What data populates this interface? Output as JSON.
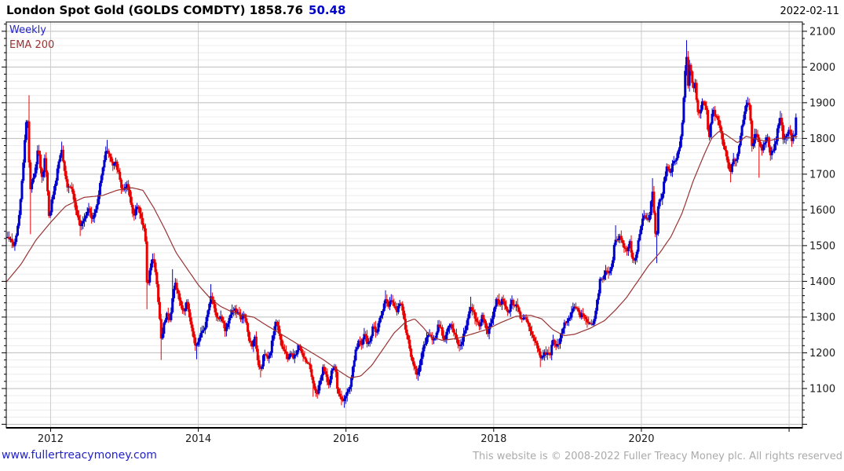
{
  "header": {
    "title": "London Spot Gold (GOLDS COMDTY) 1858.76",
    "change": "50.48",
    "date": "2022-02-11"
  },
  "legend": {
    "interval": "Weekly",
    "overlay": "EMA 200"
  },
  "footer": {
    "link": "www.fullertreacymoney.com",
    "copyright": "This website is © 2008-2022 Fuller Treacy Money plc. All rights reserved"
  },
  "chart_data": {
    "type": "candlestick",
    "title": "London Spot Gold (GOLDS COMDTY)",
    "interval": "weekly",
    "overlay": "EMA 200",
    "last_price": 1858.76,
    "change": 50.48,
    "as_of": "2022-02-11",
    "x_range": [
      2011.4,
      2022.18
    ],
    "y_range": [
      990,
      2126
    ],
    "y_ticks": [
      2100,
      2000,
      1900,
      1800,
      1700,
      1600,
      1500,
      1400,
      1300,
      1200,
      1100
    ],
    "y_minor_step": 20,
    "x_ticks": [
      2012,
      2014,
      2016,
      2018,
      2020,
      2022
    ],
    "x_tick_labels": [
      "2012",
      "2014",
      "2016",
      "2018",
      "2020",
      ""
    ],
    "grid": true,
    "legend_position": "top-left",
    "colors": {
      "up": "#0000cc",
      "down": "#e90000",
      "ema": "#993333",
      "grid_major": "#bdbdbd",
      "grid_minor": "#ececec",
      "grid_vertical": "#cccccc",
      "axis": "#000000",
      "label": "#1a1a1a"
    },
    "price_anchors": [
      [
        2011.42,
        1528
      ],
      [
        2011.46,
        1515
      ],
      [
        2011.5,
        1498
      ],
      [
        2011.54,
        1532
      ],
      [
        2011.58,
        1595
      ],
      [
        2011.62,
        1700
      ],
      [
        2011.66,
        1825
      ],
      [
        2011.685,
        1880
      ],
      [
        2011.705,
        1745
      ],
      [
        2011.725,
        1655
      ],
      [
        2011.76,
        1682
      ],
      [
        2011.8,
        1722
      ],
      [
        2011.83,
        1782
      ],
      [
        2011.86,
        1722
      ],
      [
        2011.89,
        1682
      ],
      [
        2011.92,
        1742
      ],
      [
        2011.95,
        1690
      ],
      [
        2011.98,
        1572
      ],
      [
        2012.02,
        1632
      ],
      [
        2012.06,
        1668
      ],
      [
        2012.1,
        1725
      ],
      [
        2012.15,
        1772
      ],
      [
        2012.19,
        1712
      ],
      [
        2012.23,
        1662
      ],
      [
        2012.27,
        1668
      ],
      [
        2012.31,
        1642
      ],
      [
        2012.35,
        1585
      ],
      [
        2012.4,
        1560
      ],
      [
        2012.44,
        1572
      ],
      [
        2012.48,
        1590
      ],
      [
        2012.52,
        1608
      ],
      [
        2012.56,
        1576
      ],
      [
        2012.6,
        1592
      ],
      [
        2012.64,
        1622
      ],
      [
        2012.68,
        1692
      ],
      [
        2012.72,
        1735
      ],
      [
        2012.76,
        1772
      ],
      [
        2012.8,
        1752
      ],
      [
        2012.84,
        1722
      ],
      [
        2012.88,
        1732
      ],
      [
        2012.92,
        1702
      ],
      [
        2012.96,
        1662
      ],
      [
        2013.0,
        1655
      ],
      [
        2013.04,
        1668
      ],
      [
        2013.08,
        1630
      ],
      [
        2013.12,
        1582
      ],
      [
        2013.16,
        1610
      ],
      [
        2013.2,
        1600
      ],
      [
        2013.24,
        1565
      ],
      [
        2013.28,
        1545
      ],
      [
        2013.31,
        1360
      ],
      [
        2013.35,
        1452
      ],
      [
        2013.39,
        1465
      ],
      [
        2013.43,
        1412
      ],
      [
        2013.46,
        1340
      ],
      [
        2013.5,
        1232
      ],
      [
        2013.54,
        1288
      ],
      [
        2013.58,
        1312
      ],
      [
        2013.62,
        1292
      ],
      [
        2013.66,
        1368
      ],
      [
        2013.69,
        1396
      ],
      [
        2013.73,
        1362
      ],
      [
        2013.77,
        1326
      ],
      [
        2013.81,
        1316
      ],
      [
        2013.85,
        1342
      ],
      [
        2013.89,
        1292
      ],
      [
        2013.93,
        1246
      ],
      [
        2013.97,
        1212
      ],
      [
        2014.01,
        1242
      ],
      [
        2014.05,
        1256
      ],
      [
        2014.09,
        1272
      ],
      [
        2014.13,
        1322
      ],
      [
        2014.17,
        1356
      ],
      [
        2014.21,
        1336
      ],
      [
        2014.25,
        1296
      ],
      [
        2014.29,
        1302
      ],
      [
        2014.33,
        1292
      ],
      [
        2014.37,
        1256
      ],
      [
        2014.41,
        1296
      ],
      [
        2014.45,
        1316
      ],
      [
        2014.49,
        1322
      ],
      [
        2014.53,
        1312
      ],
      [
        2014.57,
        1296
      ],
      [
        2014.61,
        1306
      ],
      [
        2014.65,
        1282
      ],
      [
        2014.69,
        1232
      ],
      [
        2014.73,
        1222
      ],
      [
        2014.77,
        1242
      ],
      [
        2014.81,
        1172
      ],
      [
        2014.85,
        1152
      ],
      [
        2014.89,
        1202
      ],
      [
        2014.93,
        1182
      ],
      [
        2014.97,
        1196
      ],
      [
        2015.01,
        1246
      ],
      [
        2015.05,
        1292
      ],
      [
        2015.09,
        1262
      ],
      [
        2015.13,
        1222
      ],
      [
        2015.17,
        1202
      ],
      [
        2015.21,
        1182
      ],
      [
        2015.25,
        1202
      ],
      [
        2015.29,
        1182
      ],
      [
        2015.33,
        1202
      ],
      [
        2015.37,
        1222
      ],
      [
        2015.41,
        1192
      ],
      [
        2015.45,
        1176
      ],
      [
        2015.49,
        1172
      ],
      [
        2015.53,
        1136
      ],
      [
        2015.57,
        1096
      ],
      [
        2015.61,
        1086
      ],
      [
        2015.65,
        1122
      ],
      [
        2015.69,
        1156
      ],
      [
        2015.73,
        1136
      ],
      [
        2015.77,
        1106
      ],
      [
        2015.81,
        1152
      ],
      [
        2015.85,
        1166
      ],
      [
        2015.89,
        1086
      ],
      [
        2015.93,
        1072
      ],
      [
        2015.97,
        1062
      ],
      [
        2016.01,
        1096
      ],
      [
        2016.05,
        1092
      ],
      [
        2016.09,
        1152
      ],
      [
        2016.13,
        1202
      ],
      [
        2016.17,
        1236
      ],
      [
        2016.21,
        1222
      ],
      [
        2016.25,
        1256
      ],
      [
        2016.29,
        1222
      ],
      [
        2016.33,
        1232
      ],
      [
        2016.37,
        1286
      ],
      [
        2016.41,
        1256
      ],
      [
        2016.45,
        1292
      ],
      [
        2016.49,
        1312
      ],
      [
        2016.53,
        1356
      ],
      [
        2016.57,
        1332
      ],
      [
        2016.61,
        1346
      ],
      [
        2016.65,
        1336
      ],
      [
        2016.69,
        1312
      ],
      [
        2016.73,
        1342
      ],
      [
        2016.77,
        1316
      ],
      [
        2016.81,
        1262
      ],
      [
        2016.85,
        1226
      ],
      [
        2016.89,
        1182
      ],
      [
        2016.93,
        1156
      ],
      [
        2016.97,
        1136
      ],
      [
        2017.01,
        1182
      ],
      [
        2017.05,
        1216
      ],
      [
        2017.09,
        1236
      ],
      [
        2017.13,
        1256
      ],
      [
        2017.17,
        1232
      ],
      [
        2017.21,
        1246
      ],
      [
        2017.25,
        1282
      ],
      [
        2017.29,
        1266
      ],
      [
        2017.33,
        1232
      ],
      [
        2017.37,
        1266
      ],
      [
        2017.41,
        1282
      ],
      [
        2017.45,
        1256
      ],
      [
        2017.49,
        1242
      ],
      [
        2017.53,
        1216
      ],
      [
        2017.57,
        1232
      ],
      [
        2017.61,
        1262
      ],
      [
        2017.65,
        1292
      ],
      [
        2017.68,
        1332
      ],
      [
        2017.72,
        1322
      ],
      [
        2017.76,
        1292
      ],
      [
        2017.8,
        1272
      ],
      [
        2017.84,
        1302
      ],
      [
        2017.88,
        1282
      ],
      [
        2017.92,
        1256
      ],
      [
        2017.96,
        1282
      ],
      [
        2018.0,
        1322
      ],
      [
        2018.04,
        1352
      ],
      [
        2018.08,
        1332
      ],
      [
        2018.12,
        1352
      ],
      [
        2018.16,
        1326
      ],
      [
        2018.2,
        1312
      ],
      [
        2018.24,
        1346
      ],
      [
        2018.28,
        1332
      ],
      [
        2018.32,
        1336
      ],
      [
        2018.36,
        1302
      ],
      [
        2018.4,
        1292
      ],
      [
        2018.44,
        1296
      ],
      [
        2018.48,
        1272
      ],
      [
        2018.52,
        1252
      ],
      [
        2018.56,
        1232
      ],
      [
        2018.6,
        1212
      ],
      [
        2018.64,
        1182
      ],
      [
        2018.68,
        1196
      ],
      [
        2018.72,
        1202
      ],
      [
        2018.76,
        1192
      ],
      [
        2018.8,
        1232
      ],
      [
        2018.84,
        1222
      ],
      [
        2018.88,
        1226
      ],
      [
        2018.92,
        1252
      ],
      [
        2018.96,
        1282
      ],
      [
        2019.0,
        1292
      ],
      [
        2019.04,
        1306
      ],
      [
        2019.08,
        1322
      ],
      [
        2019.12,
        1332
      ],
      [
        2019.16,
        1302
      ],
      [
        2019.2,
        1312
      ],
      [
        2019.24,
        1292
      ],
      [
        2019.28,
        1286
      ],
      [
        2019.32,
        1276
      ],
      [
        2019.36,
        1286
      ],
      [
        2019.4,
        1342
      ],
      [
        2019.44,
        1402
      ],
      [
        2019.48,
        1412
      ],
      [
        2019.52,
        1426
      ],
      [
        2019.56,
        1416
      ],
      [
        2019.6,
        1442
      ],
      [
        2019.64,
        1512
      ],
      [
        2019.68,
        1522
      ],
      [
        2019.72,
        1526
      ],
      [
        2019.76,
        1502
      ],
      [
        2019.8,
        1482
      ],
      [
        2019.84,
        1512
      ],
      [
        2019.88,
        1466
      ],
      [
        2019.92,
        1462
      ],
      [
        2019.96,
        1516
      ],
      [
        2020.0,
        1562
      ],
      [
        2020.04,
        1586
      ],
      [
        2020.08,
        1572
      ],
      [
        2020.12,
        1586
      ],
      [
        2020.145,
        1672
      ],
      [
        2020.17,
        1586
      ],
      [
        2020.2,
        1496
      ],
      [
        2020.23,
        1622
      ],
      [
        2020.27,
        1626
      ],
      [
        2020.31,
        1686
      ],
      [
        2020.35,
        1722
      ],
      [
        2020.39,
        1702
      ],
      [
        2020.43,
        1736
      ],
      [
        2020.47,
        1746
      ],
      [
        2020.51,
        1772
      ],
      [
        2020.545,
        1812
      ],
      [
        2020.57,
        1902
      ],
      [
        2020.59,
        1976
      ],
      [
        2020.61,
        2036
      ],
      [
        2020.63,
        1942
      ],
      [
        2020.655,
        2012
      ],
      [
        2020.68,
        1966
      ],
      [
        2020.7,
        1942
      ],
      [
        2020.73,
        1952
      ],
      [
        2020.76,
        1882
      ],
      [
        2020.79,
        1866
      ],
      [
        2020.82,
        1902
      ],
      [
        2020.85,
        1906
      ],
      [
        2020.88,
        1882
      ],
      [
        2020.91,
        1792
      ],
      [
        2020.94,
        1842
      ],
      [
        2020.97,
        1882
      ],
      [
        2021.0,
        1866
      ],
      [
        2021.04,
        1852
      ],
      [
        2021.08,
        1812
      ],
      [
        2021.12,
        1776
      ],
      [
        2021.16,
        1736
      ],
      [
        2021.2,
        1702
      ],
      [
        2021.24,
        1746
      ],
      [
        2021.28,
        1732
      ],
      [
        2021.32,
        1776
      ],
      [
        2021.36,
        1832
      ],
      [
        2021.4,
        1872
      ],
      [
        2021.44,
        1906
      ],
      [
        2021.47,
        1882
      ],
      [
        2021.5,
        1766
      ],
      [
        2021.54,
        1812
      ],
      [
        2021.58,
        1802
      ],
      [
        2021.62,
        1766
      ],
      [
        2021.66,
        1782
      ],
      [
        2021.7,
        1816
      ],
      [
        2021.74,
        1756
      ],
      [
        2021.78,
        1762
      ],
      [
        2021.82,
        1792
      ],
      [
        2021.86,
        1846
      ],
      [
        2021.89,
        1862
      ],
      [
        2021.92,
        1792
      ],
      [
        2021.96,
        1802
      ],
      [
        2022.0,
        1832
      ],
      [
        2022.03,
        1792
      ],
      [
        2022.06,
        1808
      ],
      [
        2022.09,
        1822
      ],
      [
        2022.11,
        1858.76
      ]
    ],
    "high_spikes": [
      [
        2011.705,
        1921
      ],
      [
        2012.15,
        1791
      ],
      [
        2012.76,
        1796
      ],
      [
        2013.66,
        1434
      ],
      [
        2014.17,
        1392
      ],
      [
        2016.53,
        1375
      ],
      [
        2017.68,
        1357
      ],
      [
        2018.07,
        1366
      ],
      [
        2019.65,
        1557
      ],
      [
        2020.145,
        1689
      ],
      [
        2020.61,
        2075
      ],
      [
        2021.44,
        1916
      ],
      [
        2021.89,
        1877
      ]
    ],
    "low_spikes": [
      [
        2011.73,
        1532
      ],
      [
        2012.4,
        1527
      ],
      [
        2013.31,
        1322
      ],
      [
        2013.5,
        1180
      ],
      [
        2013.97,
        1182
      ],
      [
        2014.85,
        1131
      ],
      [
        2015.56,
        1077
      ],
      [
        2015.97,
        1046
      ],
      [
        2016.97,
        1122
      ],
      [
        2018.64,
        1160
      ],
      [
        2020.21,
        1451
      ],
      [
        2021.21,
        1677
      ],
      [
        2021.6,
        1690
      ]
    ],
    "ema_anchors": [
      [
        2011.4,
        1398
      ],
      [
        2011.6,
        1448
      ],
      [
        2011.8,
        1515
      ],
      [
        2012.0,
        1565
      ],
      [
        2012.2,
        1610
      ],
      [
        2012.45,
        1635
      ],
      [
        2012.7,
        1640
      ],
      [
        2012.9,
        1655
      ],
      [
        2013.1,
        1662
      ],
      [
        2013.25,
        1655
      ],
      [
        2013.4,
        1605
      ],
      [
        2013.55,
        1545
      ],
      [
        2013.7,
        1480
      ],
      [
        2013.85,
        1435
      ],
      [
        2014.0,
        1390
      ],
      [
        2014.15,
        1355
      ],
      [
        2014.3,
        1330
      ],
      [
        2014.45,
        1315
      ],
      [
        2014.6,
        1305
      ],
      [
        2014.75,
        1300
      ],
      [
        2014.9,
        1280
      ],
      [
        2015.1,
        1255
      ],
      [
        2015.3,
        1230
      ],
      [
        2015.5,
        1205
      ],
      [
        2015.7,
        1180
      ],
      [
        2015.9,
        1150
      ],
      [
        2016.05,
        1130
      ],
      [
        2016.2,
        1135
      ],
      [
        2016.35,
        1165
      ],
      [
        2016.5,
        1210
      ],
      [
        2016.65,
        1255
      ],
      [
        2016.8,
        1285
      ],
      [
        2016.93,
        1295
      ],
      [
        2017.05,
        1270
      ],
      [
        2017.15,
        1245
      ],
      [
        2017.3,
        1235
      ],
      [
        2017.5,
        1240
      ],
      [
        2017.7,
        1252
      ],
      [
        2017.9,
        1265
      ],
      [
        2018.1,
        1285
      ],
      [
        2018.3,
        1302
      ],
      [
        2018.5,
        1305
      ],
      [
        2018.65,
        1295
      ],
      [
        2018.8,
        1265
      ],
      [
        2018.95,
        1248
      ],
      [
        2019.1,
        1252
      ],
      [
        2019.3,
        1268
      ],
      [
        2019.5,
        1290
      ],
      [
        2019.65,
        1320
      ],
      [
        2019.8,
        1355
      ],
      [
        2019.95,
        1400
      ],
      [
        2020.1,
        1445
      ],
      [
        2020.25,
        1480
      ],
      [
        2020.4,
        1525
      ],
      [
        2020.55,
        1590
      ],
      [
        2020.7,
        1680
      ],
      [
        2020.85,
        1755
      ],
      [
        2020.95,
        1800
      ],
      [
        2021.05,
        1820
      ],
      [
        2021.15,
        1810
      ],
      [
        2021.3,
        1788
      ],
      [
        2021.42,
        1806
      ],
      [
        2021.55,
        1798
      ],
      [
        2021.7,
        1792
      ],
      [
        2021.85,
        1800
      ],
      [
        2022.0,
        1802
      ],
      [
        2022.12,
        1806
      ]
    ]
  }
}
